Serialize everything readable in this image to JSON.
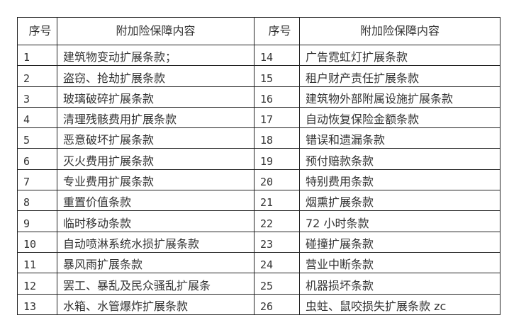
{
  "table": {
    "headers": [
      "序号",
      "附加险保障内容",
      "序号",
      "附加险保障内容"
    ],
    "rows": [
      {
        "no1": "1",
        "item1": "建筑物变动扩展条款；",
        "no2": "14",
        "item2": "广告霓虹灯扩展条款"
      },
      {
        "no1": "2",
        "item1": "盗窃、抢劫扩展条款",
        "no2": "15",
        "item2": "租户财产责任扩展条款"
      },
      {
        "no1": "3",
        "item1": "玻璃破碎扩展条款",
        "no2": "16",
        "item2": "建筑物外部附属设施扩展条款"
      },
      {
        "no1": "4",
        "item1": "清理残骸费用扩展条款",
        "no2": "17",
        "item2": "自动恢复保险金额条款"
      },
      {
        "no1": "5",
        "item1": "恶意破坏扩展条款",
        "no2": "18",
        "item2": "错误和遗漏条款"
      },
      {
        "no1": "6",
        "item1": "灭火费用扩展条款",
        "no2": "19",
        "item2": "预付赔款条款"
      },
      {
        "no1": "7",
        "item1": "专业费用扩展条款",
        "no2": "20",
        "item2": "特别费用条款"
      },
      {
        "no1": "8",
        "item1": "重置价值条款",
        "no2": "21",
        "item2": "烟熏扩展条款"
      },
      {
        "no1": "9",
        "item1": "临时移动条款",
        "no2": "22",
        "item2": "72 小时条款"
      },
      {
        "no1": "10",
        "item1": "自动喷淋系统水损扩展条款",
        "no2": "23",
        "item2": "碰撞扩展条款"
      },
      {
        "no1": "11",
        "item1": "暴风雨扩展条款",
        "no2": "24",
        "item2": "营业中断条款"
      },
      {
        "no1": "12",
        "item1": "罢工、暴乱及民众骚乱扩展条",
        "no2": "25",
        "item2": "机器损坏条款"
      },
      {
        "no1": "13",
        "item1": "水箱、水管爆炸扩展条款",
        "no2": "26",
        "item2": "虫蛀、鼠咬损失扩展条款 zc"
      }
    ]
  }
}
